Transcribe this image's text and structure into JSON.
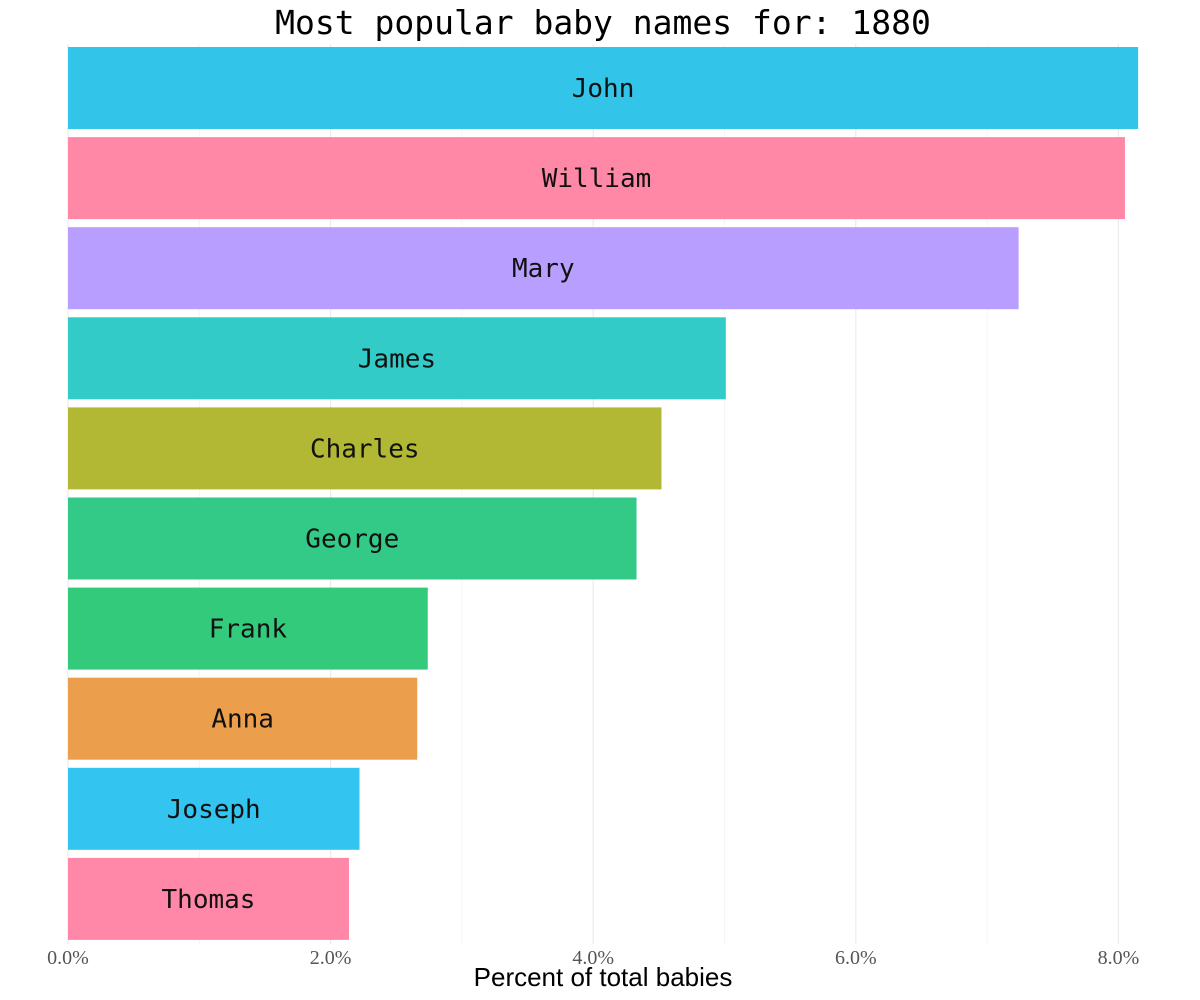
{
  "chart_data": {
    "type": "bar",
    "orientation": "horizontal",
    "title": "Most popular baby names for: 1880",
    "xlabel": "Percent of total babies",
    "ylabel": "",
    "xlim": [
      0,
      8.15
    ],
    "xticks": [
      0,
      2,
      4,
      6,
      8
    ],
    "xtick_labels": [
      "0.0%",
      "2.0%",
      "4.0%",
      "6.0%",
      "8.0%"
    ],
    "grid": true,
    "legend": "none",
    "categories": [
      "John",
      "William",
      "Mary",
      "James",
      "Charles",
      "George",
      "Frank",
      "Anna",
      "Joseph",
      "Thomas"
    ],
    "values": [
      8.15,
      8.05,
      7.24,
      5.01,
      4.52,
      4.33,
      2.74,
      2.66,
      2.22,
      2.14
    ],
    "colors": [
      "#33c4e9",
      "#ff88a6",
      "#b89eff",
      "#33cbc8",
      "#b2b834",
      "#33ca87",
      "#33ca7c",
      "#eb9e4c",
      "#33c4ef",
      "#ff88a8"
    ]
  }
}
